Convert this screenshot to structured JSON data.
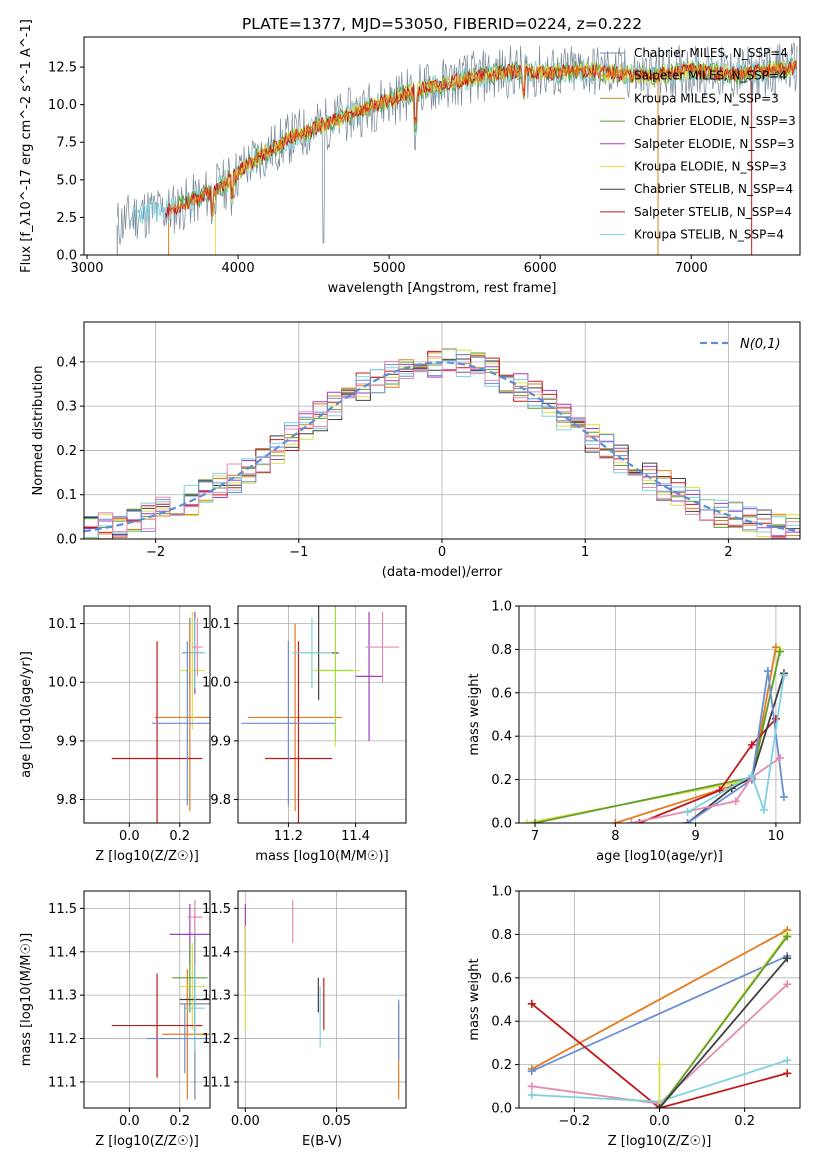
{
  "colors": {
    "series": [
      "#778899",
      "#e37c1e",
      "#cc8b36",
      "#5f9e2f",
      "#a23fbf",
      "#dede4b",
      "#404040",
      "#c21a1a",
      "#7fd1e0"
    ],
    "extra": [
      "#6b8ed6",
      "#e68bb3",
      "#a6d94c",
      "#2e8b8b",
      "#9aa0ad"
    ]
  },
  "chart_data": [
    {
      "id": "spectrum",
      "type": "line",
      "title": "PLATE=1377, MJD=53050, FIBERID=0224, z=0.222",
      "xlabel": "wavelength [Angstrom, rest frame]",
      "ylabel": "Flux [f_λ10^-17 erg cm^-2 s^-1 A^-1]",
      "xlim": [
        2980,
        7720
      ],
      "ylim": [
        0,
        14.5
      ],
      "xticks": [
        3000,
        4000,
        5000,
        6000,
        7000
      ],
      "yticks": [
        0.0,
        2.5,
        5.0,
        7.5,
        10.0,
        12.5
      ],
      "data_range": [
        3200,
        7700
      ],
      "trend": [
        [
          3200,
          2.0
        ],
        [
          3350,
          2.8
        ],
        [
          3550,
          3.0
        ],
        [
          3700,
          3.6
        ],
        [
          3900,
          4.6
        ],
        [
          4100,
          6.3
        ],
        [
          4350,
          7.8
        ],
        [
          4600,
          8.8
        ],
        [
          4800,
          9.6
        ],
        [
          5000,
          10.3
        ],
        [
          5200,
          11.0
        ],
        [
          5500,
          11.7
        ],
        [
          5800,
          12.2
        ],
        [
          6100,
          12.1
        ],
        [
          6300,
          12.3
        ],
        [
          6700,
          11.9
        ],
        [
          7000,
          12.3
        ],
        [
          7300,
          12.0
        ],
        [
          7700,
          12.5
        ]
      ],
      "legend": [
        "Chabrier MILES, N_SSP=4",
        "Salpeter MILES, N_SSP=4",
        "Kroupa MILES, N_SSP=3",
        "Chabrier ELODIE, N_SSP=3",
        "Salpeter ELODIE, N_SSP=3",
        "Kroupa ELODIE, N_SSP=3",
        "Chabrier STELIB, N_SSP=4",
        "Salpeter STELIB, N_SSP=4",
        "Kroupa STELIB, N_SSP=4"
      ],
      "legend_position": "upper-right"
    },
    {
      "id": "residuals",
      "type": "histogram",
      "xlabel": "(data-model)/error",
      "ylabel": "Normed distribution",
      "xlim": [
        -2.5,
        2.5
      ],
      "ylim": [
        0,
        0.49
      ],
      "xticks": [
        -2,
        -1,
        0,
        1,
        2
      ],
      "yticks": [
        0.0,
        0.1,
        0.2,
        0.3,
        0.4
      ],
      "bin_width": 0.1,
      "legend": [
        "N(0,1)"
      ],
      "legend_position": "upper-right",
      "grid": true
    },
    {
      "id": "age-vs-Z",
      "type": "errorbar",
      "xlabel": "Z [log10(Z/Z☉)]",
      "ylabel": "age [log10(age/yr)]",
      "xlim": [
        -0.18,
        0.32
      ],
      "ylim": [
        9.76,
        10.13
      ],
      "xticks": [
        0.0,
        0.2
      ],
      "yticks": [
        9.8,
        9.9,
        10.0,
        10.1
      ],
      "points": [
        {
          "x": 0.24,
          "y": 10.05,
          "xerr": 0.03,
          "yerr": 0.06,
          "c": 0
        },
        {
          "x": 0.24,
          "y": 9.94,
          "xerr": 0.14,
          "yerr": 0.16,
          "c": 1
        },
        {
          "x": 0.26,
          "y": 10.05,
          "xerr": 0.03,
          "yerr": 0.07,
          "c": 4
        },
        {
          "x": 0.25,
          "y": 10.02,
          "xerr": 0.05,
          "yerr": 0.1,
          "c": 5
        },
        {
          "x": 0.26,
          "y": 10.05,
          "xerr": 0.04,
          "yerr": 0.06,
          "c": 6
        },
        {
          "x": 0.11,
          "y": 9.87,
          "xerr": 0.18,
          "yerr": 0.2,
          "c": 7
        },
        {
          "x": 0.26,
          "y": 10.05,
          "xerr": 0.04,
          "yerr": 0.06,
          "c": 8
        },
        {
          "x": 0.23,
          "y": 9.93,
          "xerr": 0.14,
          "yerr": 0.14,
          "c": "extra0"
        },
        {
          "x": 0.27,
          "y": 10.06,
          "xerr": 0.02,
          "yerr": 0.05,
          "c": "extra1"
        }
      ]
    },
    {
      "id": "age-vs-mass",
      "type": "errorbar",
      "xlabel": "mass [log10(M/M☉)]",
      "ylabel": "",
      "xlim": [
        11.05,
        11.55
      ],
      "ylim": [
        9.76,
        10.13
      ],
      "xticks": [
        11.2,
        11.4
      ],
      "yticks": [
        9.8,
        9.9,
        10.0,
        10.1
      ],
      "points": [
        {
          "x": 11.22,
          "y": 9.94,
          "xerr": 0.14,
          "yerr": 0.16,
          "c": 1
        },
        {
          "x": 11.44,
          "y": 10.01,
          "xerr": 0.04,
          "yerr": 0.11,
          "c": 4
        },
        {
          "x": 11.34,
          "y": 10.02,
          "xerr": 0.07,
          "yerr": 0.13,
          "c": 5
        },
        {
          "x": 11.29,
          "y": 10.05,
          "xerr": 0.06,
          "yerr": 0.08,
          "c": 6
        },
        {
          "x": 11.23,
          "y": 9.87,
          "xerr": 0.1,
          "yerr": 0.2,
          "c": 7
        },
        {
          "x": 11.27,
          "y": 10.05,
          "xerr": 0.06,
          "yerr": 0.06,
          "c": 8
        },
        {
          "x": 11.2,
          "y": 9.93,
          "xerr": 0.14,
          "yerr": 0.14,
          "c": "extra0"
        },
        {
          "x": 11.48,
          "y": 10.06,
          "xerr": 0.05,
          "yerr": 0.06,
          "c": "extra1"
        },
        {
          "x": 11.34,
          "y": 10.02,
          "xerr": 0.05,
          "yerr": 0.12,
          "c": "extra2"
        }
      ]
    },
    {
      "id": "weight-vs-age",
      "type": "line",
      "xlabel": "age [log10(age/yr)]",
      "ylabel": "mass weight",
      "xlim": [
        6.8,
        10.3
      ],
      "ylim": [
        0,
        1.0
      ],
      "xticks": [
        7,
        8,
        9,
        10
      ],
      "yticks": [
        0.0,
        0.2,
        0.4,
        0.6,
        0.8,
        1.0
      ],
      "grid": true,
      "series": [
        {
          "c": 1,
          "points": [
            [
              8.0,
              0.0
            ],
            [
              9.7,
              0.2
            ],
            [
              10.0,
              0.81
            ]
          ]
        },
        {
          "c": 5,
          "points": [
            [
              6.9,
              0.0
            ],
            [
              9.7,
              0.2
            ],
            [
              10.05,
              0.8
            ]
          ]
        },
        {
          "c": 3,
          "points": [
            [
              7.0,
              0.0
            ],
            [
              9.7,
              0.21
            ],
            [
              10.05,
              0.79
            ]
          ]
        },
        {
          "c": 7,
          "points": [
            [
              8.3,
              0.0
            ],
            [
              9.3,
              0.15
            ],
            [
              9.7,
              0.36
            ],
            [
              10.0,
              0.48
            ]
          ]
        },
        {
          "c": 6,
          "points": [
            [
              8.9,
              0.0
            ],
            [
              9.45,
              0.16
            ],
            [
              9.7,
              0.21
            ],
            [
              10.1,
              0.69
            ]
          ]
        },
        {
          "c": "extra0",
          "points": [
            [
              8.9,
              0.0
            ],
            [
              9.7,
              0.2
            ],
            [
              9.9,
              0.7
            ],
            [
              10.1,
              0.12
            ]
          ]
        },
        {
          "c": "extra1",
          "points": [
            [
              8.2,
              0.0
            ],
            [
              9.5,
              0.1
            ],
            [
              9.7,
              0.21
            ],
            [
              10.05,
              0.3
            ]
          ]
        },
        {
          "c": 8,
          "points": [
            [
              8.9,
              0.05
            ],
            [
              9.7,
              0.22
            ],
            [
              9.85,
              0.06
            ],
            [
              10.1,
              0.68
            ]
          ]
        }
      ]
    },
    {
      "id": "mass-vs-Z",
      "type": "errorbar",
      "xlabel": "Z [log10(Z/Z☉)]",
      "ylabel": "mass [log10(M/M☉)]",
      "xlim": [
        -0.18,
        0.32
      ],
      "ylim": [
        11.04,
        11.54
      ],
      "xticks": [
        0.0,
        0.2
      ],
      "yticks": [
        11.1,
        11.2,
        11.3,
        11.4,
        11.5
      ],
      "points": [
        {
          "x": 0.26,
          "y": 11.28,
          "xerr": 0.06,
          "yerr": 0.22,
          "c": 0
        },
        {
          "x": 0.23,
          "y": 11.21,
          "xerr": 0.1,
          "yerr": 0.15,
          "c": 1
        },
        {
          "x": 0.24,
          "y": 11.44,
          "xerr": 0.08,
          "yerr": 0.07,
          "c": 4
        },
        {
          "x": 0.25,
          "y": 11.32,
          "xerr": 0.05,
          "yerr": 0.1,
          "c": 5
        },
        {
          "x": 0.24,
          "y": 11.34,
          "xerr": 0.07,
          "yerr": 0.08,
          "c": 3
        },
        {
          "x": 0.26,
          "y": 11.29,
          "xerr": 0.06,
          "yerr": 0.08,
          "c": 6
        },
        {
          "x": 0.11,
          "y": 11.23,
          "xerr": 0.18,
          "yerr": 0.12,
          "c": 7
        },
        {
          "x": 0.26,
          "y": 11.27,
          "xerr": 0.04,
          "yerr": 0.1,
          "c": 8
        },
        {
          "x": 0.22,
          "y": 11.2,
          "xerr": 0.15,
          "yerr": 0.08,
          "c": "extra0"
        },
        {
          "x": 0.26,
          "y": 11.48,
          "xerr": 0.03,
          "yerr": 0.04,
          "c": "extra1"
        }
      ]
    },
    {
      "id": "mass-vs-EBV",
      "type": "errorbar",
      "xlabel": "E(B-V)",
      "ylabel": "",
      "xlim": [
        -0.004,
        0.088
      ],
      "ylim": [
        11.04,
        11.54
      ],
      "xticks": [
        0.0,
        0.05
      ],
      "yticks": [
        11.1,
        11.2,
        11.3,
        11.4,
        11.5
      ],
      "points": [
        {
          "x": 0.0,
          "y": 11.41,
          "yerr": 0.1,
          "c": 4
        },
        {
          "x": 0.0,
          "y": 11.34,
          "yerr": 0.12,
          "c": 5
        },
        {
          "x": 0.026,
          "y": 11.47,
          "yerr": 0.05,
          "c": "extra1"
        },
        {
          "x": 0.04,
          "y": 11.3,
          "yerr": 0.04,
          "c": 6
        },
        {
          "x": 0.041,
          "y": 11.25,
          "yerr": 0.07,
          "c": 8
        },
        {
          "x": 0.043,
          "y": 11.28,
          "yerr": 0.06,
          "c": 7
        },
        {
          "x": 0.084,
          "y": 11.17,
          "yerr": 0.11,
          "c": 1
        },
        {
          "x": 0.084,
          "y": 11.22,
          "yerr": 0.07,
          "c": "extra0"
        }
      ]
    },
    {
      "id": "weight-vs-Z",
      "type": "line",
      "xlabel": "Z [log10(Z/Z☉)]",
      "ylabel": "mass weight",
      "xlim": [
        -0.33,
        0.33
      ],
      "ylim": [
        0,
        1.0
      ],
      "xticks": [
        -0.2,
        0.0,
        0.2
      ],
      "yticks": [
        0.0,
        0.2,
        0.4,
        0.6,
        0.8,
        1.0
      ],
      "grid": true,
      "series": [
        {
          "c": 1,
          "points": [
            [
              -0.3,
              0.18
            ],
            [
              0.3,
              0.82
            ]
          ]
        },
        {
          "c": "extra0",
          "points": [
            [
              -0.3,
              0.17
            ],
            [
              0.3,
              0.7
            ]
          ]
        },
        {
          "c": 7,
          "points": [
            [
              -0.3,
              0.48
            ],
            [
              0.0,
              0.0
            ],
            [
              0.3,
              0.16
            ]
          ]
        },
        {
          "c": "extra1",
          "points": [
            [
              -0.3,
              0.1
            ],
            [
              0.0,
              0.02
            ],
            [
              0.3,
              0.57
            ]
          ]
        },
        {
          "c": 8,
          "points": [
            [
              -0.3,
              0.06
            ],
            [
              0.0,
              0.03
            ],
            [
              0.3,
              0.22
            ]
          ]
        },
        {
          "c": 5,
          "points": [
            [
              0.0,
              0.2
            ],
            [
              0.0,
              0.0
            ],
            [
              0.3,
              0.8
            ]
          ]
        },
        {
          "c": 3,
          "points": [
            [
              0.0,
              0.0
            ],
            [
              0.3,
              0.79
            ]
          ]
        },
        {
          "c": 6,
          "points": [
            [
              0.0,
              0.0
            ],
            [
              0.3,
              0.69
            ]
          ]
        }
      ]
    }
  ]
}
